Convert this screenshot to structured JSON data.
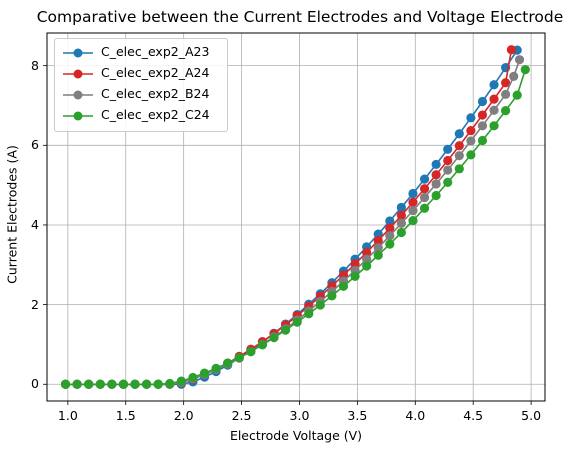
{
  "chart_data": {
    "type": "line",
    "title": "Comparative between the Current Electrodes and Voltage Electrode",
    "xlabel": "Electrode Voltage (V)",
    "ylabel": "Current Electrodes (A)",
    "xlim": [
      0.82,
      5.12
    ],
    "ylim": [
      -0.42,
      8.82
    ],
    "xticks": [
      "1.0",
      "1.5",
      "2.0",
      "2.5",
      "3.0",
      "3.5",
      "4.0",
      "4.5",
      "5.0"
    ],
    "yticks": [
      "0",
      "2",
      "4",
      "6",
      "8"
    ],
    "grid": true,
    "legend_position": "top-left",
    "series": [
      {
        "name": "C_elec_exp2_A23",
        "color": "#1f77b4",
        "x": [
          0.98,
          1.08,
          1.18,
          1.28,
          1.38,
          1.48,
          1.58,
          1.68,
          1.78,
          1.88,
          1.98,
          2.08,
          2.18,
          2.28,
          2.38,
          2.48,
          2.58,
          2.68,
          2.78,
          2.88,
          2.98,
          3.08,
          3.18,
          3.28,
          3.38,
          3.48,
          3.58,
          3.68,
          3.78,
          3.88,
          3.98,
          4.08,
          4.18,
          4.28,
          4.38,
          4.48,
          4.58,
          4.68,
          4.78,
          4.88
        ],
        "y": [
          0.0,
          0.0,
          0.0,
          0.0,
          0.0,
          0.0,
          0.0,
          0.0,
          0.0,
          0.0,
          0.0,
          0.06,
          0.18,
          0.32,
          0.48,
          0.66,
          0.85,
          1.06,
          1.28,
          1.51,
          1.75,
          2.01,
          2.27,
          2.55,
          2.84,
          3.14,
          3.45,
          3.77,
          4.1,
          4.44,
          4.79,
          5.15,
          5.52,
          5.9,
          6.29,
          6.69,
          7.1,
          7.52,
          7.95,
          8.39
        ]
      },
      {
        "name": "C_elec_exp2_A24",
        "color": "#d62728",
        "x": [
          0.98,
          1.08,
          1.18,
          1.28,
          1.38,
          1.48,
          1.58,
          1.68,
          1.78,
          1.88,
          1.98,
          2.08,
          2.18,
          2.28,
          2.38,
          2.48,
          2.58,
          2.68,
          2.78,
          2.88,
          2.98,
          3.08,
          3.18,
          3.28,
          3.38,
          3.48,
          3.58,
          3.68,
          3.78,
          3.88,
          3.98,
          4.08,
          4.18,
          4.28,
          4.38,
          4.48,
          4.58,
          4.68,
          4.78,
          4.83
        ],
        "y": [
          0.0,
          0.0,
          0.0,
          0.0,
          0.0,
          0.0,
          0.0,
          0.0,
          0.0,
          0.0,
          0.04,
          0.13,
          0.25,
          0.38,
          0.53,
          0.7,
          0.88,
          1.07,
          1.27,
          1.49,
          1.72,
          1.96,
          2.21,
          2.47,
          2.74,
          3.02,
          3.31,
          3.61,
          3.92,
          4.24,
          4.57,
          4.91,
          5.26,
          5.62,
          5.99,
          6.37,
          6.76,
          7.16,
          7.57,
          8.4
        ]
      },
      {
        "name": "C_elec_exp2_B24",
        "color": "#7f7f7f",
        "x": [
          0.98,
          1.08,
          1.18,
          1.28,
          1.38,
          1.48,
          1.58,
          1.68,
          1.78,
          1.88,
          1.98,
          2.08,
          2.18,
          2.28,
          2.38,
          2.48,
          2.58,
          2.68,
          2.78,
          2.88,
          2.98,
          3.08,
          3.18,
          3.28,
          3.38,
          3.48,
          3.58,
          3.68,
          3.78,
          3.88,
          3.98,
          4.08,
          4.18,
          4.28,
          4.38,
          4.48,
          4.58,
          4.68,
          4.78,
          4.85,
          4.9
        ],
        "y": [
          0.0,
          0.0,
          0.0,
          0.0,
          0.0,
          0.0,
          0.0,
          0.0,
          0.0,
          0.0,
          0.05,
          0.14,
          0.25,
          0.37,
          0.51,
          0.66,
          0.82,
          1.0,
          1.19,
          1.39,
          1.61,
          1.84,
          2.08,
          2.33,
          2.59,
          2.86,
          3.14,
          3.43,
          3.73,
          4.04,
          4.36,
          4.69,
          5.03,
          5.38,
          5.74,
          6.11,
          6.49,
          6.88,
          7.28,
          7.73,
          8.15
        ]
      },
      {
        "name": "C_elec_exp2_C24",
        "color": "#2ca02c",
        "x": [
          0.98,
          1.08,
          1.18,
          1.28,
          1.38,
          1.48,
          1.58,
          1.68,
          1.78,
          1.88,
          1.98,
          2.08,
          2.18,
          2.28,
          2.38,
          2.48,
          2.58,
          2.68,
          2.78,
          2.88,
          2.98,
          3.08,
          3.18,
          3.28,
          3.38,
          3.48,
          3.58,
          3.68,
          3.78,
          3.88,
          3.98,
          4.08,
          4.18,
          4.28,
          4.38,
          4.48,
          4.58,
          4.68,
          4.78,
          4.88,
          4.95
        ],
        "y": [
          0.0,
          0.0,
          0.0,
          0.0,
          0.0,
          0.0,
          0.0,
          0.0,
          0.0,
          0.02,
          0.08,
          0.17,
          0.28,
          0.4,
          0.53,
          0.67,
          0.82,
          0.99,
          1.17,
          1.36,
          1.56,
          1.77,
          1.99,
          2.22,
          2.46,
          2.71,
          2.97,
          3.24,
          3.52,
          3.81,
          4.11,
          4.42,
          4.74,
          5.07,
          5.41,
          5.76,
          6.12,
          6.49,
          6.87,
          7.26,
          7.9
        ]
      }
    ]
  }
}
